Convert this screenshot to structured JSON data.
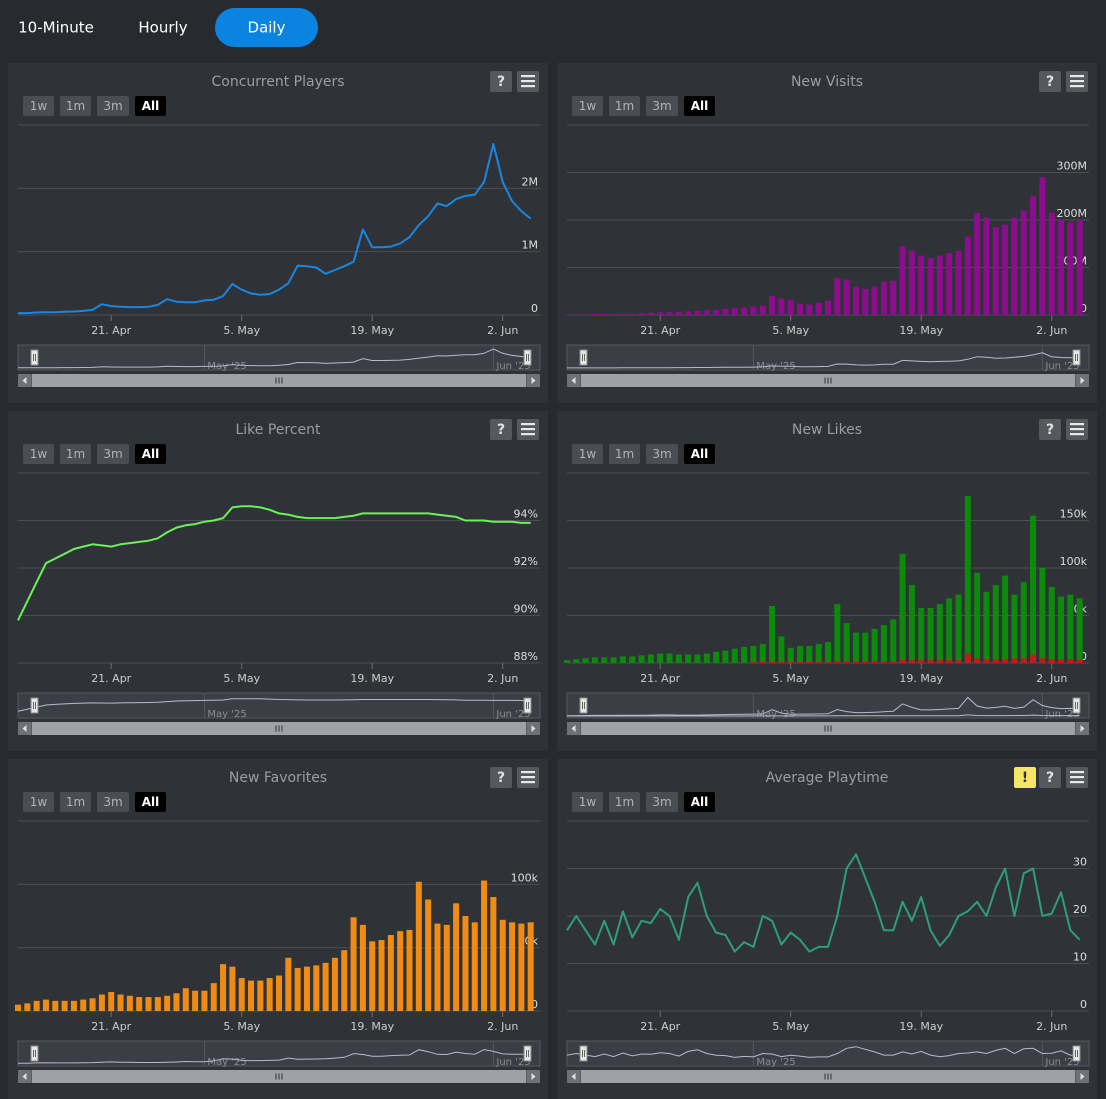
{
  "tabs": [
    "10-Minute",
    "Hourly",
    "Daily"
  ],
  "active_tab": 2,
  "range_buttons": [
    "1w",
    "1m",
    "3m",
    "All"
  ],
  "active_range": 3,
  "help_icon": "?",
  "warning_icon": "!",
  "dates": [
    "2025-04-11",
    "2025-04-12",
    "2025-04-13",
    "2025-04-14",
    "2025-04-15",
    "2025-04-16",
    "2025-04-17",
    "2025-04-18",
    "2025-04-19",
    "2025-04-20",
    "2025-04-21",
    "2025-04-22",
    "2025-04-23",
    "2025-04-24",
    "2025-04-25",
    "2025-04-26",
    "2025-04-27",
    "2025-04-28",
    "2025-04-29",
    "2025-04-30",
    "2025-05-01",
    "2025-05-02",
    "2025-05-03",
    "2025-05-04",
    "2025-05-05",
    "2025-05-06",
    "2025-05-07",
    "2025-05-08",
    "2025-05-09",
    "2025-05-10",
    "2025-05-11",
    "2025-05-12",
    "2025-05-13",
    "2025-05-14",
    "2025-05-15",
    "2025-05-16",
    "2025-05-17",
    "2025-05-18",
    "2025-05-19",
    "2025-05-20",
    "2025-05-21",
    "2025-05-22",
    "2025-05-23",
    "2025-05-24",
    "2025-05-25",
    "2025-05-26",
    "2025-05-27",
    "2025-05-28",
    "2025-05-29",
    "2025-05-30",
    "2025-05-31",
    "2025-06-01",
    "2025-06-02",
    "2025-06-03",
    "2025-06-04",
    "2025-06-05"
  ],
  "xlim": [
    "2025-04-11",
    "2025-06-06"
  ],
  "xticks": [
    {
      "value": "2025-04-21",
      "label": "21. Apr"
    },
    {
      "value": "2025-05-05",
      "label": "5. May"
    },
    {
      "value": "2025-05-19",
      "label": "19. May"
    },
    {
      "value": "2025-06-02",
      "label": "2. Jun"
    }
  ],
  "navigator_ticks": [
    {
      "value": "2025-05-01",
      "label": "May '25"
    },
    {
      "value": "2025-06-01",
      "label": "Jun '25"
    }
  ],
  "panels": [
    {
      "title": "Concurrent Players",
      "type": "line",
      "ylim": [
        0,
        3000000
      ],
      "yticks": [
        0,
        {
          "value": 1000000,
          "label": "1M"
        },
        {
          "value": 2000000,
          "label": "2M"
        }
      ],
      "series": [
        {
          "color": "#1a86e0",
          "values": [
            30000,
            30000,
            40000,
            45000,
            45000,
            50000,
            55000,
            65000,
            80000,
            170000,
            140000,
            130000,
            125000,
            125000,
            130000,
            160000,
            250000,
            210000,
            200000,
            200000,
            230000,
            240000,
            300000,
            490000,
            400000,
            340000,
            320000,
            330000,
            400000,
            500000,
            780000,
            770000,
            750000,
            650000,
            710000,
            770000,
            840000,
            1350000,
            1070000,
            1070000,
            1080000,
            1130000,
            1230000,
            1420000,
            1560000,
            1760000,
            1720000,
            1830000,
            1880000,
            1900000,
            2100000,
            2700000,
            2100000,
            1800000,
            1640000,
            1520000
          ]
        }
      ]
    },
    {
      "title": "New Visits",
      "type": "bar",
      "ylim": [
        0,
        400000000
      ],
      "yticks": [
        0,
        {
          "value": 100000000,
          "label": "100M"
        },
        {
          "value": 200000000,
          "label": "200M"
        },
        {
          "value": 300000000,
          "label": "300M"
        }
      ],
      "series": [
        {
          "color": "#8e0c8e",
          "values": [
            1000000,
            1000000,
            1000000,
            2000000,
            2000000,
            2000000,
            3000000,
            3000000,
            4000000,
            5000000,
            6000000,
            6000000,
            7000000,
            8000000,
            9000000,
            10000000,
            11000000,
            13000000,
            15000000,
            16000000,
            18000000,
            20000000,
            40000000,
            35000000,
            32000000,
            24000000,
            22000000,
            26000000,
            30000000,
            77000000,
            75000000,
            60000000,
            55000000,
            60000000,
            70000000,
            72000000,
            145000000,
            135000000,
            125000000,
            120000000,
            125000000,
            130000000,
            135000000,
            165000000,
            215000000,
            205000000,
            185000000,
            190000000,
            205000000,
            220000000,
            250000000,
            290000000,
            215000000,
            200000000,
            195000000,
            200000000
          ]
        }
      ]
    },
    {
      "title": "Like Percent",
      "type": "line",
      "ylim": [
        88,
        96
      ],
      "yticks": [
        {
          "value": 88,
          "label": "88%"
        },
        {
          "value": 90,
          "label": "90%"
        },
        {
          "value": 92,
          "label": "92%"
        },
        {
          "value": 94,
          "label": "94%"
        }
      ],
      "series": [
        {
          "color": "#6cf05a",
          "values": [
            89.8,
            90.6,
            91.4,
            92.2,
            92.4,
            92.6,
            92.8,
            92.9,
            93.0,
            92.95,
            92.9,
            93.0,
            93.05,
            93.1,
            93.15,
            93.25,
            93.5,
            93.7,
            93.8,
            93.85,
            93.95,
            94.0,
            94.1,
            94.55,
            94.6,
            94.6,
            94.55,
            94.45,
            94.3,
            94.25,
            94.15,
            94.1,
            94.1,
            94.1,
            94.1,
            94.15,
            94.2,
            94.3,
            94.3,
            94.3,
            94.3,
            94.3,
            94.3,
            94.3,
            94.3,
            94.25,
            94.2,
            94.15,
            94.0,
            94.0,
            94.0,
            93.95,
            93.95,
            93.95,
            93.9,
            93.9
          ]
        }
      ]
    },
    {
      "title": "New Likes",
      "type": "bar",
      "ylim": [
        0,
        200000
      ],
      "yticks": [
        0,
        {
          "value": 50000,
          "label": "50k"
        },
        {
          "value": 100000,
          "label": "100k"
        },
        {
          "value": 150000,
          "label": "150k"
        }
      ],
      "series": [
        {
          "color": "#0c8a0c",
          "values": [
            3000,
            4000,
            5000,
            6000,
            6000,
            6000,
            7000,
            7000,
            8000,
            9000,
            10000,
            10000,
            9000,
            9000,
            9000,
            10000,
            12000,
            13000,
            15000,
            17000,
            18000,
            20000,
            60000,
            28000,
            16000,
            18000,
            18000,
            20000,
            22000,
            62000,
            42000,
            32000,
            32000,
            36000,
            40000,
            46000,
            115000,
            82000,
            58000,
            58000,
            62000,
            68000,
            72000,
            176000,
            95000,
            75000,
            82000,
            92000,
            72000,
            85000,
            155000,
            100000,
            80000,
            70000,
            72000,
            68000
          ]
        },
        {
          "color": "#c41a1a",
          "values": [
            0,
            0,
            0,
            0,
            0,
            0,
            0,
            0,
            0,
            0,
            0,
            0,
            0,
            0,
            0,
            0,
            0,
            0,
            0,
            0,
            1000,
            1000,
            1000,
            1000,
            1000,
            1000,
            1000,
            1000,
            1000,
            2000,
            2000,
            2000,
            2000,
            2000,
            2000,
            2000,
            3000,
            3000,
            3000,
            3000,
            3000,
            3000,
            3000,
            10000,
            5000,
            4000,
            4000,
            4000,
            5000,
            5000,
            9000,
            5000,
            4000,
            4000,
            4000,
            4000
          ]
        }
      ]
    },
    {
      "title": "New Favorites",
      "type": "bar",
      "ylim": [
        0,
        150000
      ],
      "yticks": [
        0,
        {
          "value": 50000,
          "label": "50k"
        },
        {
          "value": 100000,
          "label": "100k"
        }
      ],
      "series": [
        {
          "color": "#f08c14",
          "values": [
            5000,
            6000,
            8000,
            9000,
            8000,
            8000,
            8000,
            9000,
            10000,
            13000,
            15000,
            13000,
            12000,
            11000,
            11000,
            11000,
            12000,
            14000,
            18000,
            16000,
            16000,
            22000,
            37000,
            35000,
            26000,
            24000,
            24000,
            26000,
            28000,
            42000,
            34000,
            35000,
            36000,
            38000,
            42000,
            48000,
            74000,
            68000,
            55000,
            56000,
            60000,
            63000,
            64000,
            102000,
            88000,
            69000,
            68000,
            85000,
            75000,
            70000,
            103000,
            90000,
            72000,
            70000,
            69000,
            70000
          ]
        }
      ]
    },
    {
      "title": "Average Playtime",
      "type": "line",
      "warning": true,
      "ylim": [
        0,
        40
      ],
      "yticks": [
        0,
        10,
        20,
        30
      ],
      "series": [
        {
          "color": "#2e9e78",
          "values": [
            17,
            20,
            17,
            14,
            19,
            14,
            21,
            15.5,
            19,
            18.5,
            21.5,
            20,
            15,
            24,
            27,
            20,
            16.5,
            16,
            12.5,
            14.5,
            13.5,
            20,
            19,
            14,
            16.5,
            15,
            12.5,
            13.5,
            13.5,
            20,
            30,
            33,
            28,
            23,
            17,
            17,
            23,
            19,
            24,
            17,
            13.7,
            16,
            20,
            21,
            23,
            20,
            26,
            30,
            20,
            29,
            30,
            20,
            20.5,
            25,
            17,
            15
          ]
        }
      ]
    }
  ]
}
